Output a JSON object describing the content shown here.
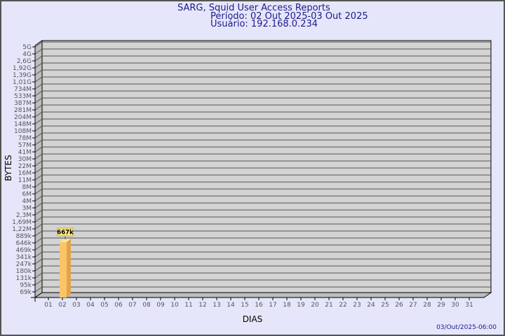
{
  "chart_data": {
    "type": "bar",
    "title": "SARG, Squid User Access Reports",
    "subtitle_lines": [
      "Período: 02 Out 2025-03 Out 2025",
      "Usuário: 192.168.0.234"
    ],
    "xlabel": "DIAS",
    "ylabel": "BYTES",
    "y_scale": "log",
    "y_tick_labels": [
      "5G",
      "4G",
      "2,6G",
      "1,92G",
      "1,39G",
      "1,01G",
      "734M",
      "533M",
      "387M",
      "281M",
      "204M",
      "148M",
      "108M",
      "78M",
      "57M",
      "41M",
      "30M",
      "22M",
      "16M",
      "11M",
      "8M",
      "6M",
      "4M",
      "3M",
      "2,3M",
      "1,69M",
      "1,22M",
      "889k",
      "646k",
      "469k",
      "341k",
      "247k",
      "180k",
      "131k",
      "95k",
      "69k"
    ],
    "categories": [
      "01",
      "02",
      "03",
      "04",
      "05",
      "06",
      "07",
      "08",
      "09",
      "10",
      "11",
      "12",
      "13",
      "14",
      "15",
      "16",
      "17",
      "18",
      "19",
      "20",
      "21",
      "22",
      "23",
      "24",
      "25",
      "26",
      "27",
      "28",
      "29",
      "30",
      "31"
    ],
    "series": [
      {
        "values": [
          null,
          667000,
          null,
          null,
          null,
          null,
          null,
          null,
          null,
          null,
          null,
          null,
          null,
          null,
          null,
          null,
          null,
          null,
          null,
          null,
          null,
          null,
          null,
          null,
          null,
          null,
          null,
          null,
          null,
          null,
          null
        ],
        "data_labels": {
          "02": "667k"
        }
      }
    ],
    "grid": true,
    "colors": {
      "background": "#e6e6fa",
      "wall": "#d3d3d3",
      "bar": "#fcc468",
      "bar_side": "#e0a548",
      "title": "#1a1a8c"
    }
  },
  "footer": {
    "timestamp": "03/Out/2025-06:00"
  }
}
